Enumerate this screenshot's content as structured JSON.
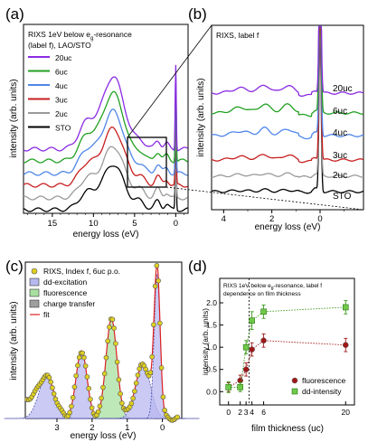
{
  "colors": {
    "20uc": "#8a2be2",
    "6uc": "#22a022",
    "4uc": "#4f86e8",
    "3uc": "#c81e1e",
    "2uc": "#9a9a9a",
    "STO": "#000000",
    "dd": "#b8b8f0",
    "fluor": "#a8e0a0",
    "ct": "#9e9e9e",
    "fit": "#dd2222",
    "fluor_pts": "#a01818",
    "dd_pts": "#3a9a1a"
  },
  "chart_data": [
    {
      "panel": "(a)",
      "type": "line",
      "annotation": "RIXS 1eV below e_g-resonance (label f), LAO/STO",
      "annotation_lines": [
        "RIXS 1eV below e",
        "-resonance"
      ],
      "annotation_sub": "g",
      "annotation_line2": "(label f), LAO/STO",
      "xlabel": "energy loss (eV)",
      "ylabel": "intensity (arb. units)",
      "xlim": [
        18.5,
        -1.5
      ],
      "xticks": [
        15,
        10,
        5,
        0
      ],
      "legend": "top-left",
      "series": [
        {
          "name": "20uc",
          "offset": 5
        },
        {
          "name": "6uc",
          "offset": 4
        },
        {
          "name": "4uc",
          "offset": 3
        },
        {
          "name": "3uc",
          "offset": 2
        },
        {
          "name": "2uc",
          "offset": 1
        },
        {
          "name": "STO",
          "offset": 0
        }
      ]
    },
    {
      "panel": "(b)",
      "type": "line",
      "annotation": "RIXS, label f",
      "xlabel": "energy loss (eV)",
      "ylabel": "intensity (arb. units)",
      "xlim": [
        4.5,
        -1.8
      ],
      "xticks": [
        4,
        2,
        0
      ],
      "labels": [
        "20uc",
        "6uc",
        "4uc",
        "3uc",
        "2uc",
        "STO"
      ]
    },
    {
      "panel": "(c)",
      "type": "area",
      "xlabel": "energy loss (eV)",
      "ylabel": "intensity (arb. units)",
      "xlim": [
        3.9,
        -0.55
      ],
      "xticks": [
        3,
        2,
        1,
        0
      ],
      "legend": [
        {
          "label": "RIXS, Index f, 6uc p.o.",
          "kind": "points"
        },
        {
          "label": "dd-excitation",
          "kind": "patch"
        },
        {
          "label": "fluorescence",
          "kind": "patch"
        },
        {
          "label": "charge transfer",
          "kind": "patch"
        },
        {
          "label": "fit",
          "kind": "line"
        }
      ]
    },
    {
      "panel": "(d)",
      "type": "scatter",
      "annotation": "RIXS 1eV below e_g-resonance, label f dependence on film thickness",
      "annotation_line1a": "RIXS 1eV below e",
      "annotation_sub": "g",
      "annotation_line1b": "-resonance, label f",
      "annotation_line2": "dependence on film thickness",
      "xlabel": "film thickness (uc)",
      "ylabel": "intensity (arb. units)",
      "xlim": [
        -1.5,
        21.5
      ],
      "ylim": [
        -0.3,
        2.55
      ],
      "xticks": [
        0,
        2,
        3,
        4,
        6,
        20
      ],
      "yticks": [
        0.0,
        0.5,
        1.0,
        1.5,
        2.0
      ],
      "vline_x": 3.5,
      "series": [
        {
          "name": "fluorescence",
          "x": [
            0,
            2,
            3,
            4,
            6,
            20
          ],
          "y": [
            0.1,
            0.25,
            0.5,
            0.95,
            1.15,
            1.05
          ],
          "err": [
            0.1,
            0.12,
            0.15,
            0.15,
            0.15,
            0.15
          ]
        },
        {
          "name": "dd-intensity",
          "x": [
            0,
            2,
            3,
            4,
            6,
            20
          ],
          "y": [
            0.1,
            0.1,
            1.0,
            1.6,
            1.8,
            1.9
          ],
          "err": [
            0.12,
            0.1,
            0.15,
            0.2,
            0.15,
            0.15
          ]
        }
      ],
      "legend": "bottom-right"
    }
  ]
}
